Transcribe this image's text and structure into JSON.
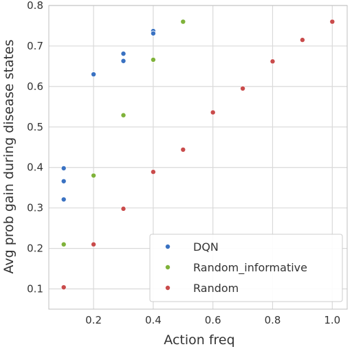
{
  "chart_data": {
    "type": "scatter",
    "xlabel": "Action freq",
    "ylabel": "Avg prob gain during disease states",
    "xlim": [
      0.05,
      1.05
    ],
    "ylim": [
      0.05,
      0.8
    ],
    "xticks": [
      0.2,
      0.4,
      0.6,
      0.8,
      1.0
    ],
    "xtick_labels": [
      "0.2",
      "0.4",
      "0.6",
      "0.8",
      "1.0"
    ],
    "yticks": [
      0.1,
      0.2,
      0.3,
      0.4,
      0.5,
      0.6,
      0.7,
      0.8
    ],
    "ytick_labels": [
      "0.1",
      "0.2",
      "0.3",
      "0.4",
      "0.5",
      "0.6",
      "0.7",
      "0.8"
    ],
    "grid": true,
    "legend_position": "bottom-right",
    "series": [
      {
        "name": "DQN",
        "color": "#3a72c2",
        "points": [
          {
            "x": 0.1,
            "y": 0.398
          },
          {
            "x": 0.1,
            "y": 0.366
          },
          {
            "x": 0.1,
            "y": 0.321
          },
          {
            "x": 0.2,
            "y": 0.63
          },
          {
            "x": 0.3,
            "y": 0.681
          },
          {
            "x": 0.3,
            "y": 0.663
          },
          {
            "x": 0.4,
            "y": 0.737
          },
          {
            "x": 0.4,
            "y": 0.731
          }
        ]
      },
      {
        "name": "Random_informative",
        "color": "#7fb23a",
        "points": [
          {
            "x": 0.1,
            "y": 0.21
          },
          {
            "x": 0.2,
            "y": 0.38
          },
          {
            "x": 0.3,
            "y": 0.529
          },
          {
            "x": 0.4,
            "y": 0.666
          },
          {
            "x": 0.5,
            "y": 0.76
          }
        ]
      },
      {
        "name": "Random",
        "color": "#c94b4b",
        "points": [
          {
            "x": 0.1,
            "y": 0.104
          },
          {
            "x": 0.2,
            "y": 0.21
          },
          {
            "x": 0.3,
            "y": 0.298
          },
          {
            "x": 0.4,
            "y": 0.389
          },
          {
            "x": 0.5,
            "y": 0.444
          },
          {
            "x": 0.6,
            "y": 0.536
          },
          {
            "x": 0.7,
            "y": 0.595
          },
          {
            "x": 0.8,
            "y": 0.662
          },
          {
            "x": 0.9,
            "y": 0.715
          },
          {
            "x": 1.0,
            "y": 0.76
          }
        ]
      }
    ]
  }
}
